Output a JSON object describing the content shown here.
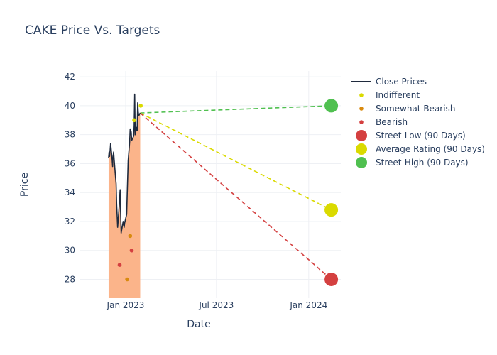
{
  "chart_data": {
    "type": "line",
    "title": "CAKE Price Vs. Targets",
    "xlabel": "Date",
    "ylabel": "Price",
    "ylim": [
      26.7,
      42.4
    ],
    "xlim": [
      "2022-10-01",
      "2024-03-05"
    ],
    "x_ticks": [
      {
        "date": "2023-01-01",
        "label": "Jan 2023"
      },
      {
        "date": "2023-07-01",
        "label": "Jul 2023"
      },
      {
        "date": "2024-01-01",
        "label": "Jan 2024"
      }
    ],
    "y_ticks": [
      28,
      30,
      32,
      34,
      36,
      38,
      40,
      42
    ],
    "close_prices": {
      "name": "Close Prices",
      "color": "#1f2a3d",
      "fill_color": "#fbb48a",
      "points": [
        [
          "2022-11-28",
          36.4
        ],
        [
          "2022-11-29",
          36.8
        ],
        [
          "2022-11-30",
          36.5
        ],
        [
          "2022-12-01",
          36.9
        ],
        [
          "2022-12-02",
          37.4
        ],
        [
          "2022-12-05",
          36.3
        ],
        [
          "2022-12-06",
          35.8
        ],
        [
          "2022-12-07",
          36.5
        ],
        [
          "2022-12-08",
          36.8
        ],
        [
          "2022-12-09",
          36.3
        ],
        [
          "2022-12-12",
          35.0
        ],
        [
          "2022-12-13",
          34.6
        ],
        [
          "2022-12-14",
          33.2
        ],
        [
          "2022-12-15",
          32.4
        ],
        [
          "2022-12-16",
          31.6
        ],
        [
          "2022-12-19",
          33.0
        ],
        [
          "2022-12-20",
          33.6
        ],
        [
          "2022-12-21",
          34.2
        ],
        [
          "2022-12-22",
          32.6
        ],
        [
          "2022-12-23",
          31.2
        ],
        [
          "2022-12-27",
          32.0
        ],
        [
          "2022-12-28",
          31.8
        ],
        [
          "2022-12-29",
          31.6
        ],
        [
          "2022-12-30",
          31.9
        ],
        [
          "2023-01-03",
          32.5
        ],
        [
          "2023-01-04",
          33.8
        ],
        [
          "2023-01-05",
          35.0
        ],
        [
          "2023-01-06",
          36.2
        ],
        [
          "2023-01-09",
          37.5
        ],
        [
          "2023-01-10",
          38.4
        ],
        [
          "2023-01-11",
          38.0
        ],
        [
          "2023-01-12",
          38.2
        ],
        [
          "2023-01-13",
          37.6
        ],
        [
          "2023-01-17",
          37.9
        ],
        [
          "2023-01-18",
          38.6
        ],
        [
          "2023-01-19",
          40.8
        ],
        [
          "2023-01-20",
          38.0
        ],
        [
          "2023-01-23",
          38.5
        ],
        [
          "2023-01-24",
          38.3
        ],
        [
          "2023-01-25",
          40.2
        ],
        [
          "2023-01-26",
          39.6
        ],
        [
          "2023-01-27",
          39.3
        ],
        [
          "2023-01-30",
          39.5
        ]
      ]
    },
    "indifferent": {
      "name": "Indifferent",
      "color": "#dada00",
      "points": [
        [
          "2023-01-18",
          39.0
        ],
        [
          "2023-01-31",
          40.0
        ]
      ]
    },
    "somewhat_bearish": {
      "name": "Somewhat Bearish",
      "color": "#d98a0f",
      "points": [
        [
          "2023-01-04",
          28.0
        ],
        [
          "2023-01-10",
          31.0
        ]
      ]
    },
    "bearish": {
      "name": "Bearish",
      "color": "#d44040",
      "points": [
        [
          "2022-12-20",
          29.0
        ],
        [
          "2023-01-13",
          30.0
        ]
      ]
    },
    "street_low": {
      "name": "Street-Low (90 Days)",
      "color": "#d44040",
      "start": [
        "2023-01-30",
        39.5
      ],
      "end": [
        "2024-02-15",
        28.0
      ]
    },
    "average_rating": {
      "name": "Average Rating (90 Days)",
      "color": "#dada00",
      "start": [
        "2023-01-30",
        39.5
      ],
      "end": [
        "2024-02-15",
        32.8
      ]
    },
    "street_high": {
      "name": "Street-High (90 Days)",
      "color": "#50c050",
      "start": [
        "2023-01-30",
        39.5
      ],
      "end": [
        "2024-02-15",
        40.0
      ]
    },
    "legend_position": "right",
    "grid": true
  }
}
